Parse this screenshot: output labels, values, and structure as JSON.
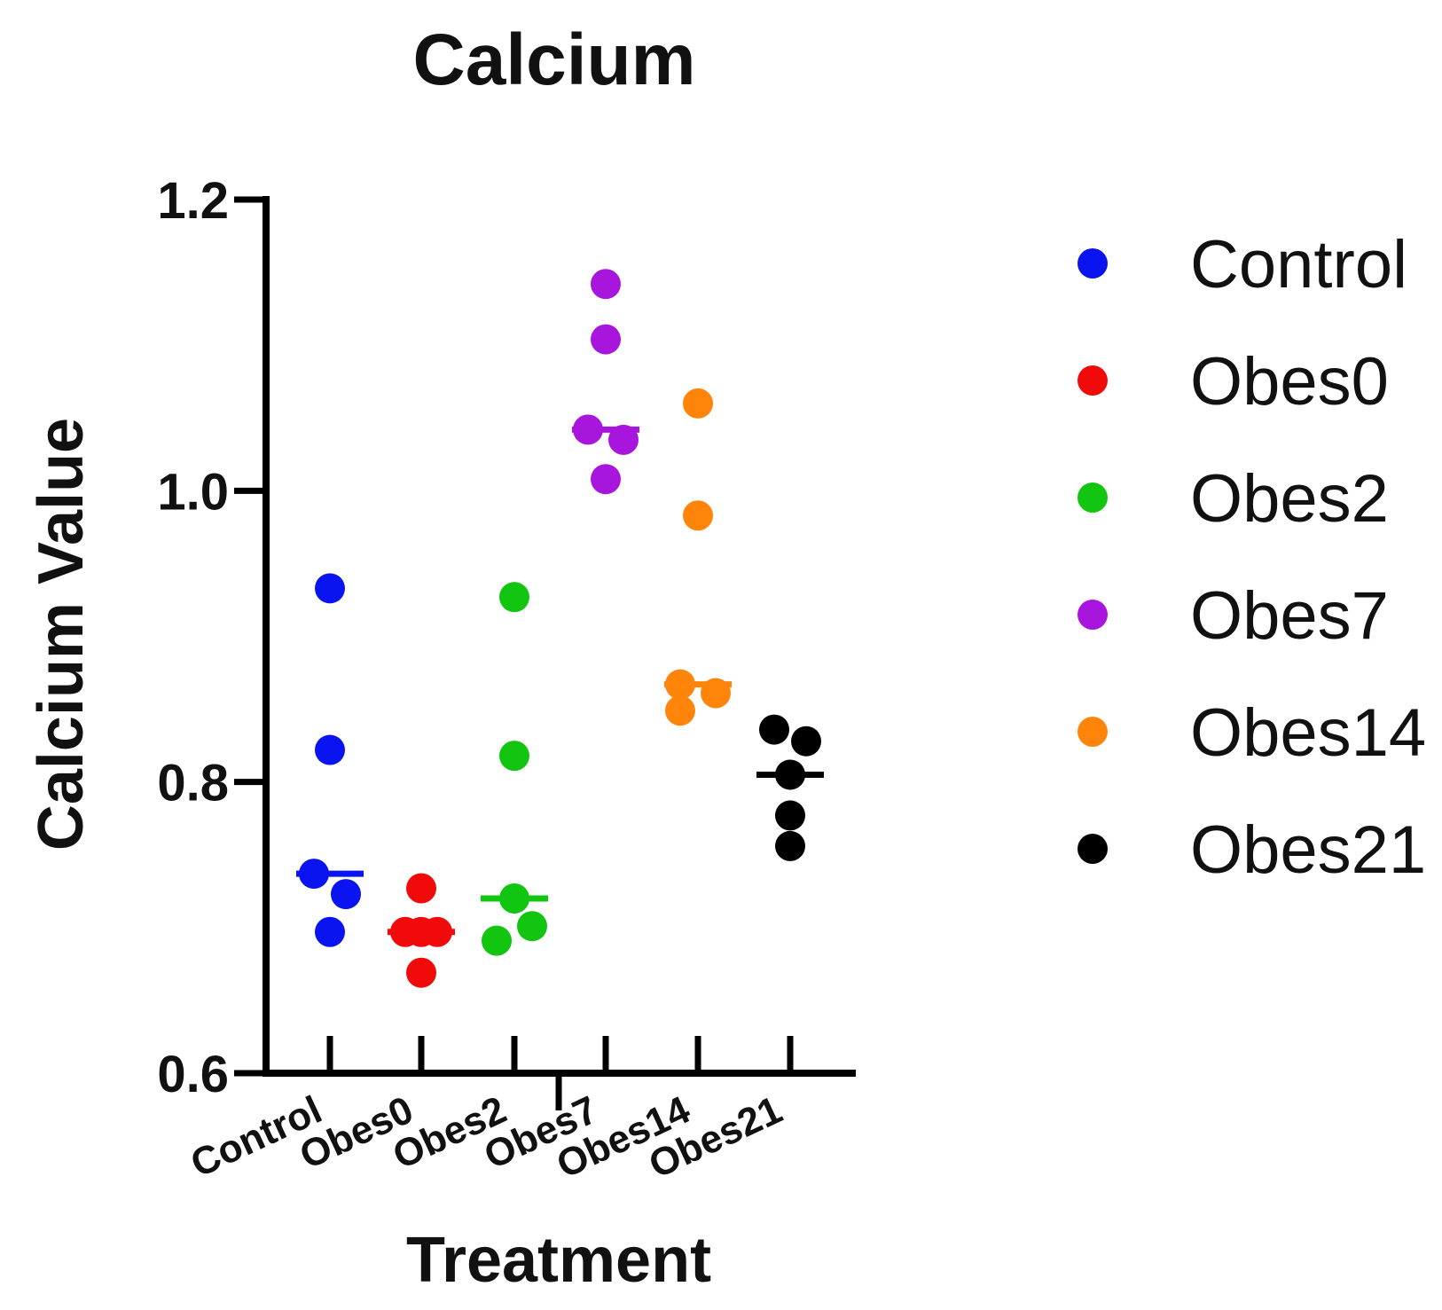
{
  "chart_data": {
    "type": "scatter",
    "title": "Calcium",
    "xlabel": "Treatment",
    "ylabel": "Calcium Value",
    "ylim": [
      0.6,
      1.2
    ],
    "yticks": [
      "0.6",
      "0.8",
      "1.0",
      "1.2"
    ],
    "legend_position": "right",
    "categories": [
      "Control",
      "Obes0",
      "Obes2",
      "Obes7",
      "Obes14",
      "Obes21"
    ],
    "series": [
      {
        "name": "Control",
        "color": "#0a14f0",
        "values": [
          0.933,
          0.822,
          0.737,
          0.723,
          0.697
        ],
        "median": 0.737
      },
      {
        "name": "Obes0",
        "color": "#f00a0a",
        "values": [
          0.727,
          0.697,
          0.697,
          0.697,
          0.669
        ],
        "median": 0.697
      },
      {
        "name": "Obes2",
        "color": "#11c511",
        "values": [
          0.927,
          0.818,
          0.72,
          0.701,
          0.691
        ],
        "median": 0.72
      },
      {
        "name": "Obes7",
        "color": "#a816dd",
        "values": [
          1.142,
          1.104,
          1.042,
          1.035,
          1.008
        ],
        "median": 1.042
      },
      {
        "name": "Obes14",
        "color": "#ff850a",
        "values": [
          1.06,
          0.983,
          0.867,
          0.861,
          0.849
        ],
        "median": 0.867
      },
      {
        "name": "Obes21",
        "color": "#000000",
        "values": [
          0.836,
          0.828,
          0.805,
          0.777,
          0.756
        ],
        "median": 0.805
      }
    ]
  }
}
